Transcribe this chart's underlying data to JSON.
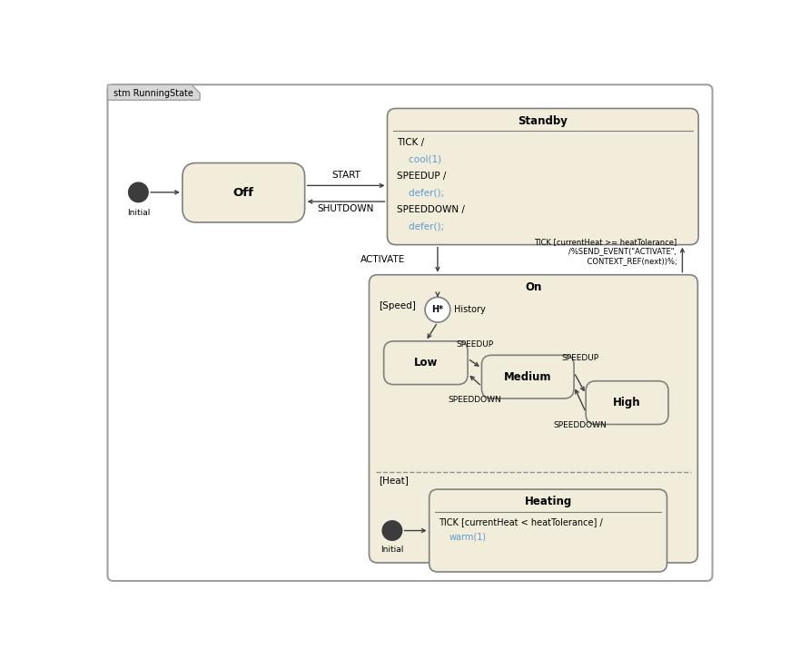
{
  "bg_color": "#ffffff",
  "outer_border_color": "#a0a0a0",
  "state_fill": "#f2edda",
  "state_border": "#808080",
  "tab_fill": "#e0e0e0",
  "tab_text": "stm RunningState",
  "standby_title": "Standby",
  "off_title": "Off",
  "on_title": "On",
  "heating_title": "Heating",
  "speed_label": "[Speed]",
  "heat_label": "[Heat]",
  "history_label": "History",
  "low_label": "Low",
  "medium_label": "Medium",
  "high_label": "High",
  "text_black": "#000000",
  "text_blue": "#5b9bd5",
  "text_green": "#70ad47",
  "arrow_color": "#404040",
  "dashed_line_color": "#909090",
  "title_font_size": 8.5,
  "body_font_size": 7.5,
  "small_font_size": 7.0,
  "label_font_size": 7.5
}
